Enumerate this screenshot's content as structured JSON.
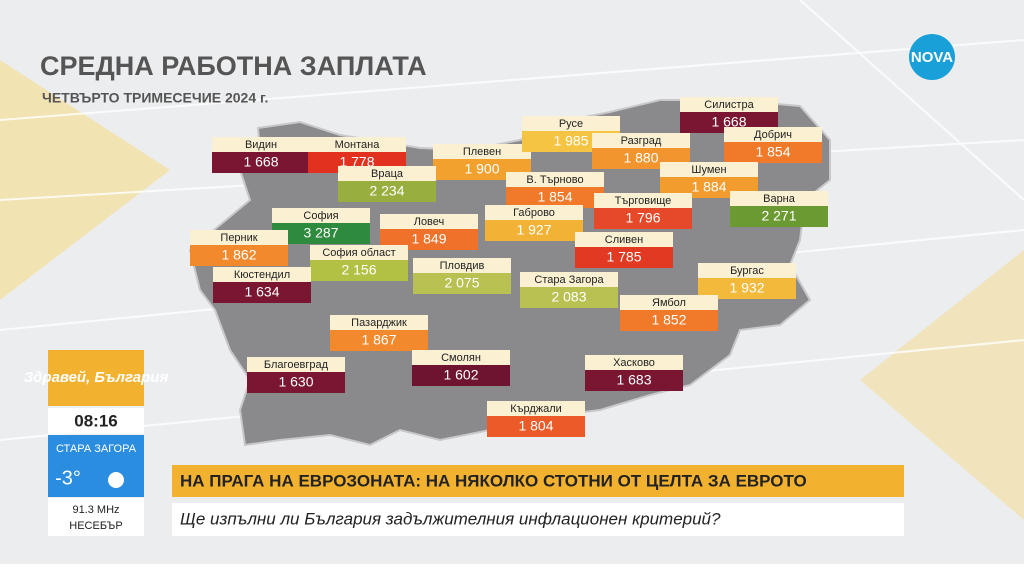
{
  "header": {
    "title": "СРЕДНА РАБОТНА ЗАПЛАТА",
    "subtitle": "ЧЕТВЪРТО ТРИМЕСЕЧИЕ 2024 г."
  },
  "logo": "NOVA",
  "regions": [
    {
      "name": "Видин",
      "value": "1 668",
      "color": "#7a1632"
    },
    {
      "name": "Монтана",
      "value": "1 778",
      "color": "#e2321f"
    },
    {
      "name": "Плевен",
      "value": "1 900",
      "color": "#f2a12e"
    },
    {
      "name": "Русе",
      "value": "1 985",
      "color": "#f5c443"
    },
    {
      "name": "Силистра",
      "value": "1 668",
      "color": "#7a1632"
    },
    {
      "name": "Разград",
      "value": "1 880",
      "color": "#f2952e"
    },
    {
      "name": "Добрич",
      "value": "1 854",
      "color": "#f07a2a"
    },
    {
      "name": "Враца",
      "value": "2 234",
      "color": "#98ae3e"
    },
    {
      "name": "В. Търново",
      "value": "1 854",
      "color": "#f07a2a"
    },
    {
      "name": "Шумен",
      "value": "1 884",
      "color": "#f29c2e"
    },
    {
      "name": "Търговище",
      "value": "1 796",
      "color": "#e6482a"
    },
    {
      "name": "Варна",
      "value": "2 271",
      "color": "#6b9a32"
    },
    {
      "name": "София",
      "value": "3 287",
      "color": "#2e8a3c"
    },
    {
      "name": "Ловеч",
      "value": "1 849",
      "color": "#f0722a"
    },
    {
      "name": "Габрово",
      "value": "1 927",
      "color": "#f2b236"
    },
    {
      "name": "Перник",
      "value": "1 862",
      "color": "#f28a2d"
    },
    {
      "name": "Сливен",
      "value": "1 785",
      "color": "#e23a22"
    },
    {
      "name": "София област",
      "value": "2 156",
      "color": "#b2c044"
    },
    {
      "name": "Кюстендил",
      "value": "1 634",
      "color": "#7a1632"
    },
    {
      "name": "Пловдив",
      "value": "2 075",
      "color": "#b8c152"
    },
    {
      "name": "Стара Загора",
      "value": "2 083",
      "color": "#b8c152"
    },
    {
      "name": "Бургас",
      "value": "1 932",
      "color": "#f3b93a"
    },
    {
      "name": "Пазарджик",
      "value": "1 867",
      "color": "#f28a2d"
    },
    {
      "name": "Ямбол",
      "value": "1 852",
      "color": "#f07a2a"
    },
    {
      "name": "Благоевград",
      "value": "1 630",
      "color": "#7a1632"
    },
    {
      "name": "Смолян",
      "value": "1 602",
      "color": "#6e1430"
    },
    {
      "name": "Хасково",
      "value": "1 683",
      "color": "#7a1632"
    },
    {
      "name": "Кърджали",
      "value": "1 804",
      "color": "#ec5a28"
    }
  ],
  "show": {
    "name": "Здравей, България",
    "time": "08:16",
    "city": "СТАРА ЗАГОРА",
    "temperature": "-3°",
    "radio": "91.3 MHz",
    "radio_city": "НЕСЕБЪР"
  },
  "ticker": {
    "headline": "НА ПРАГА НА ЕВРОЗОНАТА: НА НЯКОЛКО СТОТНИ ОТ ЦЕЛТА ЗА ЕВРОТО",
    "subline": "Ще изпълни ли България задължителния инфлационен критерий?"
  }
}
